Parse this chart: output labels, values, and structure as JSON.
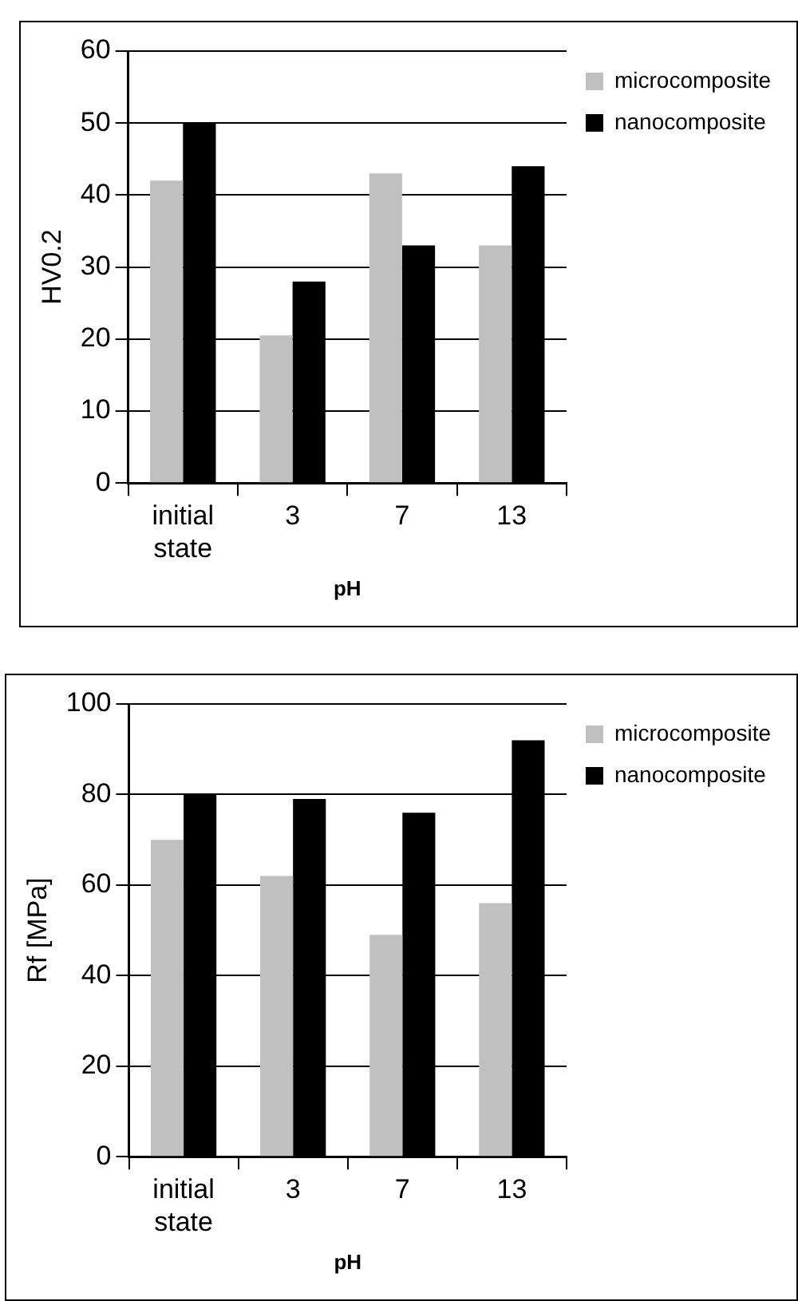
{
  "chart_data": [
    {
      "type": "bar",
      "xlabel": "pH",
      "ylabel": "HV0.2",
      "categories": [
        "initial state",
        "3",
        "7",
        "13"
      ],
      "series": [
        {
          "name": "microcomposite",
          "color": "#c0c0c0",
          "values": [
            42,
            20.5,
            43,
            33
          ]
        },
        {
          "name": "nanocomposite",
          "color": "#000000",
          "values": [
            50,
            28,
            33,
            44
          ]
        }
      ],
      "ylim": [
        0,
        60
      ],
      "yticks": [
        0,
        10,
        20,
        30,
        40,
        50,
        60
      ],
      "grid": "y",
      "legend": "top right"
    },
    {
      "type": "bar",
      "xlabel": "pH",
      "ylabel": "Rf [MPa]",
      "categories": [
        "initial state",
        "3",
        "7",
        "13"
      ],
      "series": [
        {
          "name": "microcomposite",
          "color": "#c0c0c0",
          "values": [
            70,
            62,
            49,
            56
          ]
        },
        {
          "name": "nanocomposite",
          "color": "#000000",
          "values": [
            80,
            79,
            76,
            92
          ]
        }
      ],
      "ylim": [
        0,
        100
      ],
      "yticks": [
        0,
        20,
        40,
        60,
        80,
        100
      ],
      "grid": "y",
      "legend": "top right"
    }
  ]
}
